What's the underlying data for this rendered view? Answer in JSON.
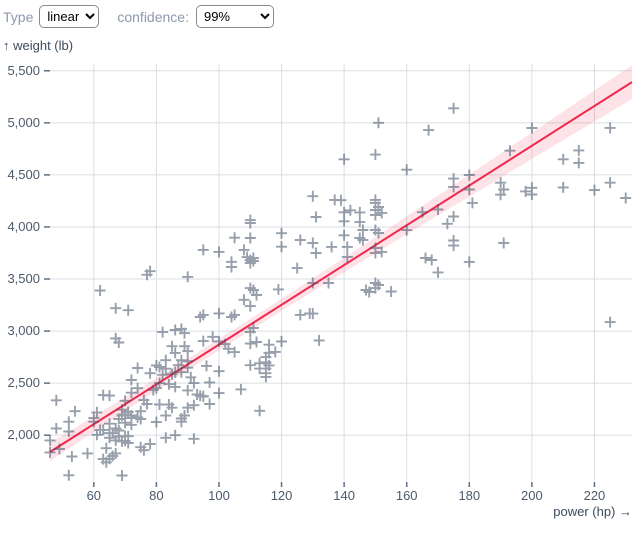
{
  "header": {
    "type_label": "Type",
    "type_select": {
      "value": "linear",
      "options": [
        "linear"
      ]
    },
    "confidence_label": "confidence:",
    "confidence_select": {
      "value": "99%",
      "options": [
        "99%"
      ]
    }
  },
  "chart_data": {
    "type": "scatter",
    "title": "",
    "xlabel": "power (hp) →",
    "ylabel": "↑ weight (lb)",
    "x_field": "power (hp)",
    "y_field": "weight (lb)",
    "xlim": [
      46,
      232
    ],
    "ylim": [
      1560,
      5565
    ],
    "grid": true,
    "xticks": [
      {
        "v": 60,
        "label": "60"
      },
      {
        "v": 80,
        "label": "80"
      },
      {
        "v": 100,
        "label": "100"
      },
      {
        "v": 120,
        "label": "120"
      },
      {
        "v": 140,
        "label": "140"
      },
      {
        "v": 160,
        "label": "160"
      },
      {
        "v": 180,
        "label": "180"
      },
      {
        "v": 200,
        "label": "200"
      },
      {
        "v": 220,
        "label": "220"
      }
    ],
    "yticks": [
      {
        "v": 2000,
        "label": "2,000"
      },
      {
        "v": 2500,
        "label": "2,500"
      },
      {
        "v": 3000,
        "label": "3,000"
      },
      {
        "v": 3500,
        "label": "3,500"
      },
      {
        "v": 4000,
        "label": "4,000"
      },
      {
        "v": 4500,
        "label": "4,500"
      },
      {
        "v": 5000,
        "label": "5,000"
      },
      {
        "v": 5500,
        "label": "5,500"
      }
    ],
    "regression": {
      "type": "linear",
      "slope": 19.1,
      "intercept": 960,
      "confidence": "99%",
      "band": {
        "center": 55,
        "at_hp": 104,
        "right_edge": 162,
        "left_edge": 88
      }
    },
    "points": [
      [
        46,
        1835
      ],
      [
        46,
        1950
      ],
      [
        48,
        2335
      ],
      [
        48,
        2065
      ],
      [
        49,
        1867
      ],
      [
        52,
        2035
      ],
      [
        52,
        2130
      ],
      [
        52,
        1615
      ],
      [
        53,
        1795
      ],
      [
        54,
        2230
      ],
      [
        58,
        1825
      ],
      [
        60,
        2130
      ],
      [
        60,
        2164
      ],
      [
        61,
        2004
      ],
      [
        61,
        2219
      ],
      [
        62,
        2050
      ],
      [
        62,
        3390
      ],
      [
        63,
        2051
      ],
      [
        63,
        1770
      ],
      [
        63,
        2385
      ],
      [
        64,
        1875
      ],
      [
        64,
        1740
      ],
      [
        65,
        1773
      ],
      [
        65,
        1975
      ],
      [
        65,
        2020
      ],
      [
        65,
        2110
      ],
      [
        65,
        2380
      ],
      [
        66,
        1800
      ],
      [
        66,
        2019
      ],
      [
        67,
        1950
      ],
      [
        67,
        2065
      ],
      [
        67,
        1825
      ],
      [
        67,
        2930
      ],
      [
        67,
        3220
      ],
      [
        68,
        1985
      ],
      [
        68,
        2045
      ],
      [
        68,
        2155
      ],
      [
        68,
        2890
      ],
      [
        69,
        1613
      ],
      [
        69,
        1940
      ],
      [
        69,
        2189
      ],
      [
        69,
        2245
      ],
      [
        70,
        1945
      ],
      [
        70,
        1990
      ],
      [
        70,
        2120
      ],
      [
        70,
        2200
      ],
      [
        70,
        2330
      ],
      [
        71,
        1925
      ],
      [
        71,
        1990
      ],
      [
        71,
        2223
      ],
      [
        71,
        3200
      ],
      [
        72,
        2100
      ],
      [
        72,
        2164
      ],
      [
        72,
        2189
      ],
      [
        72,
        2408
      ],
      [
        72,
        2530
      ],
      [
        74,
        2171
      ],
      [
        74,
        2451
      ],
      [
        74,
        2645
      ],
      [
        75,
        2155
      ],
      [
        75,
        2230
      ],
      [
        75,
        1885
      ],
      [
        76,
        1856
      ],
      [
        76,
        2337
      ],
      [
        77,
        2300
      ],
      [
        77,
        3540
      ],
      [
        78,
        2595
      ],
      [
        78,
        3575
      ],
      [
        78,
        1915
      ],
      [
        79,
        2433
      ],
      [
        80,
        2126
      ],
      [
        80,
        2451
      ],
      [
        80,
        2670
      ],
      [
        81,
        2295
      ],
      [
        81,
        2500
      ],
      [
        81,
        2655
      ],
      [
        82,
        2580
      ],
      [
        82,
        2990
      ],
      [
        83,
        2188
      ],
      [
        83,
        2639
      ],
      [
        83,
        2720
      ],
      [
        83,
        1975
      ],
      [
        84,
        2295
      ],
      [
        84,
        2490
      ],
      [
        85,
        2264
      ],
      [
        85,
        2587
      ],
      [
        85,
        2855
      ],
      [
        86,
        2464
      ],
      [
        86,
        2605
      ],
      [
        86,
        2790
      ],
      [
        86,
        3010
      ],
      [
        86,
        2000
      ],
      [
        87,
        2672
      ],
      [
        88,
        2130
      ],
      [
        88,
        2160
      ],
      [
        88,
        2605
      ],
      [
        88,
        2720
      ],
      [
        88,
        3021
      ],
      [
        89,
        2189
      ],
      [
        89,
        2855
      ],
      [
        89,
        2980
      ],
      [
        90,
        2264
      ],
      [
        90,
        2430
      ],
      [
        90,
        2648
      ],
      [
        90,
        2711
      ],
      [
        90,
        2807
      ],
      [
        90,
        3520
      ],
      [
        91,
        2556
      ],
      [
        92,
        2288
      ],
      [
        92,
        2500
      ],
      [
        92,
        1965
      ],
      [
        93,
        2391
      ],
      [
        94,
        2379
      ],
      [
        94,
        3135
      ],
      [
        95,
        2372
      ],
      [
        95,
        2375
      ],
      [
        95,
        2904
      ],
      [
        95,
        3155
      ],
      [
        95,
        3780
      ],
      [
        96,
        2665
      ],
      [
        97,
        2300
      ],
      [
        97,
        2506
      ],
      [
        98,
        2945
      ],
      [
        100,
        2404
      ],
      [
        100,
        2615
      ],
      [
        100,
        2901
      ],
      [
        100,
        3170
      ],
      [
        100,
        3760
      ],
      [
        102,
        2875
      ],
      [
        103,
        2830
      ],
      [
        104,
        3135
      ],
      [
        104,
        3615
      ],
      [
        104,
        3665
      ],
      [
        105,
        2798
      ],
      [
        105,
        3155
      ],
      [
        105,
        3897
      ],
      [
        107,
        2440
      ],
      [
        108,
        3300
      ],
      [
        108,
        3780
      ],
      [
        109,
        3710
      ],
      [
        110,
        2672
      ],
      [
        110,
        2880
      ],
      [
        110,
        2990
      ],
      [
        110,
        3240
      ],
      [
        110,
        3413
      ],
      [
        110,
        3654
      ],
      [
        110,
        3683
      ],
      [
        110,
        3894
      ],
      [
        110,
        4038
      ],
      [
        110,
        4066
      ],
      [
        111,
        3029
      ],
      [
        111,
        3394
      ],
      [
        111,
        3673
      ],
      [
        111,
        3702
      ],
      [
        112,
        2895
      ],
      [
        112,
        3346
      ],
      [
        113,
        2234
      ],
      [
        113,
        2640
      ],
      [
        113,
        2690
      ],
      [
        115,
        2560
      ],
      [
        115,
        2595
      ],
      [
        115,
        2640
      ],
      [
        115,
        2694
      ],
      [
        115,
        2700
      ],
      [
        115,
        2750
      ],
      [
        116,
        2670
      ],
      [
        116,
        2790
      ],
      [
        116,
        2869
      ],
      [
        118,
        2800
      ],
      [
        119,
        3400
      ],
      [
        120,
        2900
      ],
      [
        120,
        3810
      ],
      [
        120,
        3940
      ],
      [
        125,
        3605
      ],
      [
        126,
        3155
      ],
      [
        126,
        3875
      ],
      [
        129,
        3169
      ],
      [
        130,
        3168
      ],
      [
        130,
        3462
      ],
      [
        130,
        3846
      ],
      [
        130,
        4295
      ],
      [
        131,
        3750
      ],
      [
        131,
        4096
      ],
      [
        132,
        2910
      ],
      [
        135,
        3462
      ],
      [
        136,
        3808
      ],
      [
        137,
        4260
      ],
      [
        139,
        4257
      ],
      [
        140,
        4054
      ],
      [
        140,
        4141
      ],
      [
        140,
        3920
      ],
      [
        140,
        4650
      ],
      [
        141,
        3808
      ],
      [
        141,
        3712
      ],
      [
        142,
        4160
      ],
      [
        145,
        3894
      ],
      [
        145,
        4048
      ],
      [
        145,
        4140
      ],
      [
        146,
        3875
      ],
      [
        146,
        3971
      ],
      [
        147,
        3394
      ],
      [
        148,
        3375
      ],
      [
        150,
        3413
      ],
      [
        150,
        3462
      ],
      [
        150,
        3750
      ],
      [
        150,
        3798
      ],
      [
        150,
        3971
      ],
      [
        150,
        4115
      ],
      [
        150,
        4163
      ],
      [
        150,
        4231
      ],
      [
        150,
        4260
      ],
      [
        150,
        4695
      ],
      [
        151,
        3442
      ],
      [
        151,
        3942
      ],
      [
        151,
        4192
      ],
      [
        151,
        5000
      ],
      [
        152,
        3760
      ],
      [
        152,
        4135
      ],
      [
        155,
        3380
      ],
      [
        160,
        3970
      ],
      [
        160,
        4550
      ],
      [
        165,
        4142
      ],
      [
        166,
        3702
      ],
      [
        167,
        4930
      ],
      [
        168,
        3683
      ],
      [
        170,
        3563
      ],
      [
        170,
        4168
      ],
      [
        173,
        4030
      ],
      [
        175,
        3821
      ],
      [
        175,
        3870
      ],
      [
        175,
        4100
      ],
      [
        175,
        4385
      ],
      [
        175,
        4464
      ],
      [
        175,
        5140
      ],
      [
        180,
        3664
      ],
      [
        180,
        4360
      ],
      [
        180,
        4499
      ],
      [
        181,
        4231
      ],
      [
        190,
        4310
      ],
      [
        190,
        4425
      ],
      [
        191,
        3846
      ],
      [
        191,
        4360
      ],
      [
        193,
        4732
      ],
      [
        198,
        4341
      ],
      [
        200,
        4312
      ],
      [
        200,
        4376
      ],
      [
        200,
        4950
      ],
      [
        210,
        4380
      ],
      [
        210,
        4650
      ],
      [
        215,
        4615
      ],
      [
        215,
        4735
      ],
      [
        220,
        4354
      ],
      [
        225,
        3086
      ],
      [
        225,
        4425
      ],
      [
        225,
        4951
      ],
      [
        230,
        4278
      ]
    ],
    "colors": {
      "marker": "#425166",
      "marker_opacity": 0.55,
      "line": "#f2274d",
      "band": "#f2274d",
      "band_opacity": 0.13,
      "grid": "#dadfe4",
      "tick": "#5f7084",
      "tick_text": "#4d5a6b",
      "axis_title": "#3d4a5c"
    }
  }
}
